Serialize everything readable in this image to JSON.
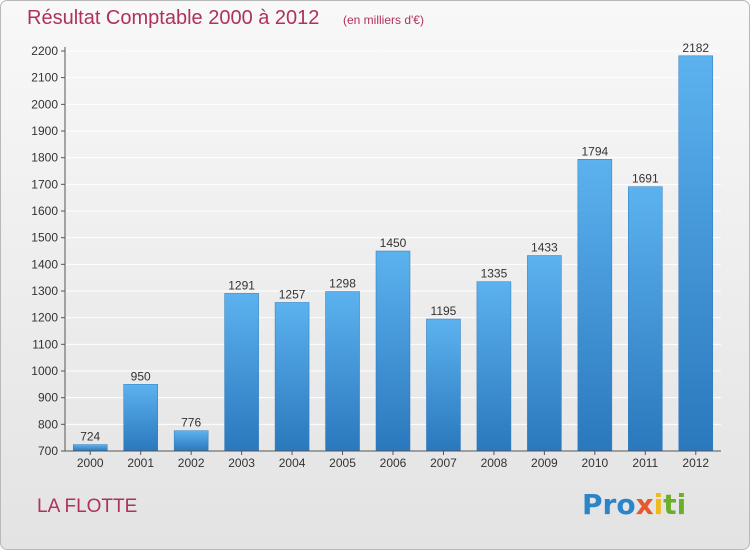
{
  "title": "Résultat Comptable 2000 à 2012",
  "unit": "(en milliers d'€)",
  "commune": "LA FLOTTE",
  "logo": {
    "p1": "Pro",
    "p2": "x",
    "p3": "i",
    "p4": "ti"
  },
  "colors": {
    "bar": "#3d8fd2",
    "title": "#b0315a",
    "grid": "#ffffff",
    "axis": "#555555"
  },
  "chart_data": {
    "type": "bar",
    "categories": [
      "2000",
      "2001",
      "2002",
      "2003",
      "2004",
      "2005",
      "2006",
      "2007",
      "2008",
      "2009",
      "2010",
      "2011",
      "2012"
    ],
    "values": [
      724,
      950,
      776,
      1291,
      1257,
      1298,
      1450,
      1195,
      1335,
      1433,
      1794,
      1691,
      2182
    ],
    "data_labels": [
      "724",
      "950",
      "776",
      "1291",
      "1257",
      "1298",
      "1450",
      "1195",
      "1335",
      "1433",
      "1794",
      "1691",
      "2182"
    ],
    "yticks": [
      700,
      800,
      900,
      1000,
      1100,
      1200,
      1300,
      1400,
      1500,
      1600,
      1700,
      1800,
      1900,
      2000,
      2100,
      2200
    ],
    "ylim": [
      700,
      2200
    ],
    "grid": true,
    "legend": "none"
  }
}
